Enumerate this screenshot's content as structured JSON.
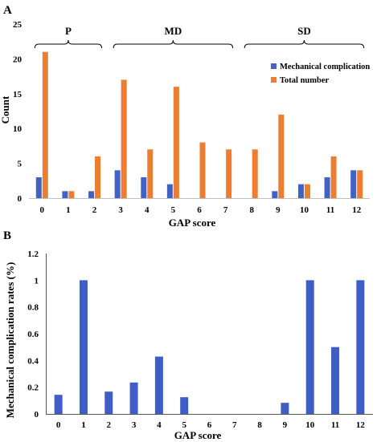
{
  "colors": {
    "mechanical": "#4162c4",
    "total": "#ed7d31",
    "bar_b": "#3f5dc6",
    "axis": "#555555"
  },
  "chart_data": [
    {
      "panel": "A",
      "type": "bar",
      "categories": [
        "0",
        "1",
        "2",
        "3",
        "4",
        "5",
        "6",
        "7",
        "8",
        "9",
        "10",
        "11",
        "12"
      ],
      "series": [
        {
          "name": "Mechanical complication",
          "values": [
            3,
            1,
            1,
            4,
            3,
            2,
            0,
            0,
            0,
            1,
            2,
            3,
            4
          ]
        },
        {
          "name": "Total number",
          "values": [
            21,
            1,
            6,
            17,
            7,
            16,
            8,
            7,
            7,
            12,
            2,
            6,
            4
          ]
        }
      ],
      "xlabel": "GAP score",
      "ylabel": "Count",
      "ylim": [
        0,
        25
      ],
      "yticks": [
        "0",
        "5",
        "10",
        "15",
        "20",
        "25"
      ],
      "grid": false,
      "legend": "right",
      "groups": [
        {
          "label": "P",
          "from": 0,
          "to": 2
        },
        {
          "label": "MD",
          "from": 3,
          "to": 7
        },
        {
          "label": "SD",
          "from": 8,
          "to": 12
        }
      ]
    },
    {
      "panel": "B",
      "type": "bar",
      "categories": [
        "0",
        "1",
        "2",
        "3",
        "4",
        "5",
        "6",
        "7",
        "8",
        "9",
        "10",
        "11",
        "12"
      ],
      "values": [
        0.143,
        1,
        0.167,
        0.235,
        0.429,
        0.125,
        0,
        0,
        0,
        0.083,
        1,
        0.5,
        1
      ],
      "xlabel": "GAP score",
      "ylabel": "Mechanical complication rates (%)",
      "ylim": [
        0,
        1.2
      ],
      "yticks": [
        "0",
        "0.2",
        "0.4",
        "0.6",
        "0.8",
        "1",
        "1.2"
      ],
      "grid": false
    }
  ]
}
